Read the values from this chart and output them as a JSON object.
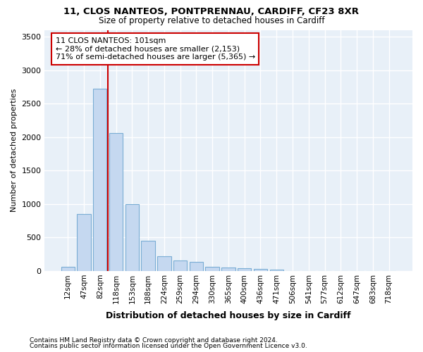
{
  "title1": "11, CLOS NANTEOS, PONTPRENNAU, CARDIFF, CF23 8XR",
  "title2": "Size of property relative to detached houses in Cardiff",
  "xlabel": "Distribution of detached houses by size in Cardiff",
  "ylabel": "Number of detached properties",
  "categories": [
    "12sqm",
    "47sqm",
    "82sqm",
    "118sqm",
    "153sqm",
    "188sqm",
    "224sqm",
    "259sqm",
    "294sqm",
    "330sqm",
    "365sqm",
    "400sqm",
    "436sqm",
    "471sqm",
    "506sqm",
    "541sqm",
    "577sqm",
    "612sqm",
    "647sqm",
    "683sqm",
    "718sqm"
  ],
  "values": [
    55,
    850,
    2720,
    2060,
    1000,
    450,
    215,
    150,
    130,
    60,
    50,
    35,
    25,
    18,
    0,
    0,
    0,
    0,
    0,
    0,
    0
  ],
  "bar_color": "#c5d8f0",
  "bar_edgecolor": "#7aadd4",
  "bg_color": "#e8f0f8",
  "grid_color": "#ffffff",
  "vline_x_index": 2.5,
  "vline_color": "#cc0000",
  "annotation_line1": "11 CLOS NANTEOS: 101sqm",
  "annotation_line2": "← 28% of detached houses are smaller (2,153)",
  "annotation_line3": "71% of semi-detached houses are larger (5,365) →",
  "annotation_box_edgecolor": "#cc0000",
  "ylim": [
    0,
    3600
  ],
  "yticks": [
    0,
    500,
    1000,
    1500,
    2000,
    2500,
    3000,
    3500
  ],
  "footer1": "Contains HM Land Registry data © Crown copyright and database right 2024.",
  "footer2": "Contains public sector information licensed under the Open Government Licence v3.0."
}
